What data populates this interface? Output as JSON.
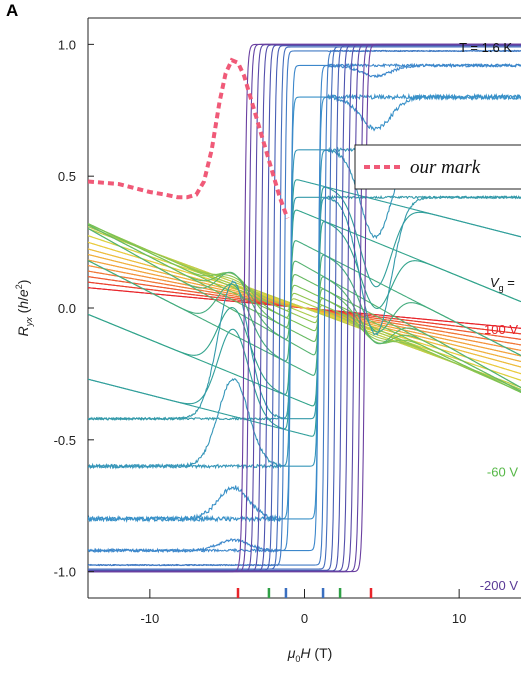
{
  "panel_label": "A",
  "chart_data": {
    "type": "line",
    "title": "",
    "xlabel": "μ0H (T)",
    "ylabel": "Ryx (h/e²)",
    "xlim": [
      -14,
      14
    ],
    "ylim": [
      -1.1,
      1.1
    ],
    "xticks": [
      -10,
      0,
      10
    ],
    "xtick_labels": [
      "-10",
      "0",
      "10"
    ],
    "yticks": [
      1.0,
      0.5,
      0.0,
      -0.5,
      -1.0
    ],
    "ytick_labels": [
      "1.0",
      "0.5",
      "0.0",
      "-0.5",
      "-1.0"
    ],
    "grid": false,
    "temperature_annotation": "T = 1.6 K",
    "gate_label": "V",
    "gate_subscript": "g",
    "gate_suffix": " =",
    "gate_annotations": [
      {
        "text": "100 V",
        "color": "#e8242a",
        "y": -0.08
      },
      {
        "text": "-60 V",
        "color": "#56b847",
        "y": -0.62
      },
      {
        "text": "-200 V",
        "color": "#5a3a96",
        "y": -1.05
      }
    ],
    "legend": {
      "label": "our mark",
      "color": "#f05a78",
      "style": "dashed",
      "position": "upper-right"
    },
    "colormap": [
      "#e8242a",
      "#f59a3c",
      "#e8d23e",
      "#7cc353",
      "#2fa38e",
      "#3a8fcf",
      "#4a56b0",
      "#6a3fa0"
    ],
    "field_markers": [
      {
        "x": -4.3,
        "color": "#e8242a"
      },
      {
        "x": -2.3,
        "color": "#2fa046"
      },
      {
        "x": -1.2,
        "color": "#3a6fc0"
      },
      {
        "x": 1.2,
        "color": "#3a6fc0"
      },
      {
        "x": 2.3,
        "color": "#2fa046"
      },
      {
        "x": 4.3,
        "color": "#e8242a"
      }
    ],
    "series": [
      {
        "gate": 100,
        "slope": 0.0055,
        "sat": 0,
        "hc": 0,
        "peak": 0,
        "noise": 0
      },
      {
        "gate": 90,
        "slope": 0.007,
        "sat": 0,
        "hc": 0,
        "peak": 0,
        "noise": 0
      },
      {
        "gate": 80,
        "slope": 0.0085,
        "sat": 0,
        "hc": 0,
        "peak": 0,
        "noise": 0
      },
      {
        "gate": 70,
        "slope": 0.01,
        "sat": 0,
        "hc": 0,
        "peak": 0,
        "noise": 0
      },
      {
        "gate": 60,
        "slope": 0.0115,
        "sat": 0,
        "hc": 0,
        "peak": 0,
        "noise": 0
      },
      {
        "gate": 50,
        "slope": 0.013,
        "sat": 0,
        "hc": 0,
        "peak": 0,
        "noise": 0
      },
      {
        "gate": 40,
        "slope": 0.0145,
        "sat": 0,
        "hc": 0,
        "peak": 0,
        "noise": 0
      },
      {
        "gate": 30,
        "slope": 0.016,
        "sat": 0,
        "hc": 0,
        "peak": 0,
        "noise": 0
      },
      {
        "gate": 20,
        "slope": 0.0178,
        "sat": 0,
        "hc": 0,
        "peak": 0,
        "noise": 0
      },
      {
        "gate": 10,
        "slope": 0.0196,
        "sat": 0,
        "hc": 0,
        "peak": 0,
        "noise": 0
      },
      {
        "gate": 0,
        "slope": 0.0215,
        "sat": 0,
        "hc": 0,
        "peak": 0,
        "noise": 0
      },
      {
        "gate": -10,
        "slope": 0.0235,
        "sat": 0.02,
        "hc": 0.9,
        "peak": 0.02,
        "noise": 0
      },
      {
        "gate": -20,
        "slope": 0.0256,
        "sat": 0.04,
        "hc": 0.9,
        "peak": 0.04,
        "noise": 0
      },
      {
        "gate": -30,
        "slope": 0.0279,
        "sat": 0.07,
        "hc": 0.9,
        "peak": 0.07,
        "noise": 0
      },
      {
        "gate": -40,
        "slope": 0.0304,
        "sat": 0.11,
        "hc": 0.9,
        "peak": 0.1,
        "noise": 0
      },
      {
        "gate": -50,
        "slope": 0.033,
        "sat": 0.16,
        "hc": 0.9,
        "peak": 0.14,
        "noise": 0
      },
      {
        "gate": -60,
        "slope": 0.03,
        "sat": 0.24,
        "hc": 0.9,
        "peak": 0.19,
        "noise": 0
      },
      {
        "gate": -70,
        "slope": 0.024,
        "sat": 0.36,
        "hc": 0.9,
        "peak": 0.25,
        "noise": 0
      },
      {
        "gate": -80,
        "slope": 0.015,
        "sat": 0.48,
        "hc": 0.9,
        "peak": 0.33,
        "noise": 0
      },
      {
        "gate": -90,
        "slope": 0.0,
        "sat": 0.42,
        "hc": 0.9,
        "peak": 0.52,
        "noise": 0.004
      },
      {
        "gate": -100,
        "slope": 0.0,
        "sat": 0.6,
        "hc": 0.9,
        "peak": 0.33,
        "noise": 0.006
      },
      {
        "gate": -110,
        "slope": 0.0,
        "sat": 0.8,
        "hc": 0.9,
        "peak": 0.12,
        "noise": 0.008
      },
      {
        "gate": -120,
        "slope": 0.0,
        "sat": 0.92,
        "hc": 0.9,
        "peak": 0.04,
        "noise": 0.005
      },
      {
        "gate": -130,
        "slope": 0.0,
        "sat": 0.975,
        "hc": 1.3,
        "peak": 0,
        "noise": 0.002
      },
      {
        "gate": -140,
        "slope": 0.0,
        "sat": 0.99,
        "hc": 1.6,
        "peak": 0,
        "noise": 0
      },
      {
        "gate": -150,
        "slope": 0.0,
        "sat": 0.995,
        "hc": 2.0,
        "peak": 0,
        "noise": 0
      },
      {
        "gate": -160,
        "slope": 0.0,
        "sat": 0.997,
        "hc": 2.4,
        "peak": 0,
        "noise": 0
      },
      {
        "gate": -170,
        "slope": 0.0,
        "sat": 0.998,
        "hc": 2.8,
        "peak": 0,
        "noise": 0
      },
      {
        "gate": -180,
        "slope": 0.0,
        "sat": 0.999,
        "hc": 3.2,
        "peak": 0,
        "noise": 0
      },
      {
        "gate": -190,
        "slope": 0.0,
        "sat": 1.0,
        "hc": 3.6,
        "peak": 0,
        "noise": 0
      },
      {
        "gate": -200,
        "slope": 0.0,
        "sat": 1.0,
        "hc": 3.9,
        "peak": 0,
        "noise": 0
      }
    ],
    "highlighted_curve": {
      "name": "our mark",
      "x": [
        -14,
        -12,
        -10,
        -9,
        -8.2,
        -7.6,
        -7,
        -6.5,
        -6,
        -5.5,
        -5.1,
        -4.7,
        -4.3,
        -3.9,
        -3.5,
        -3.0,
        -2.5,
        -2.0,
        -1.6,
        -1.1
      ],
      "y": [
        0.48,
        0.47,
        0.44,
        0.43,
        0.42,
        0.42,
        0.43,
        0.48,
        0.6,
        0.78,
        0.89,
        0.94,
        0.93,
        0.88,
        0.8,
        0.7,
        0.6,
        0.5,
        0.42,
        0.34
      ]
    }
  }
}
